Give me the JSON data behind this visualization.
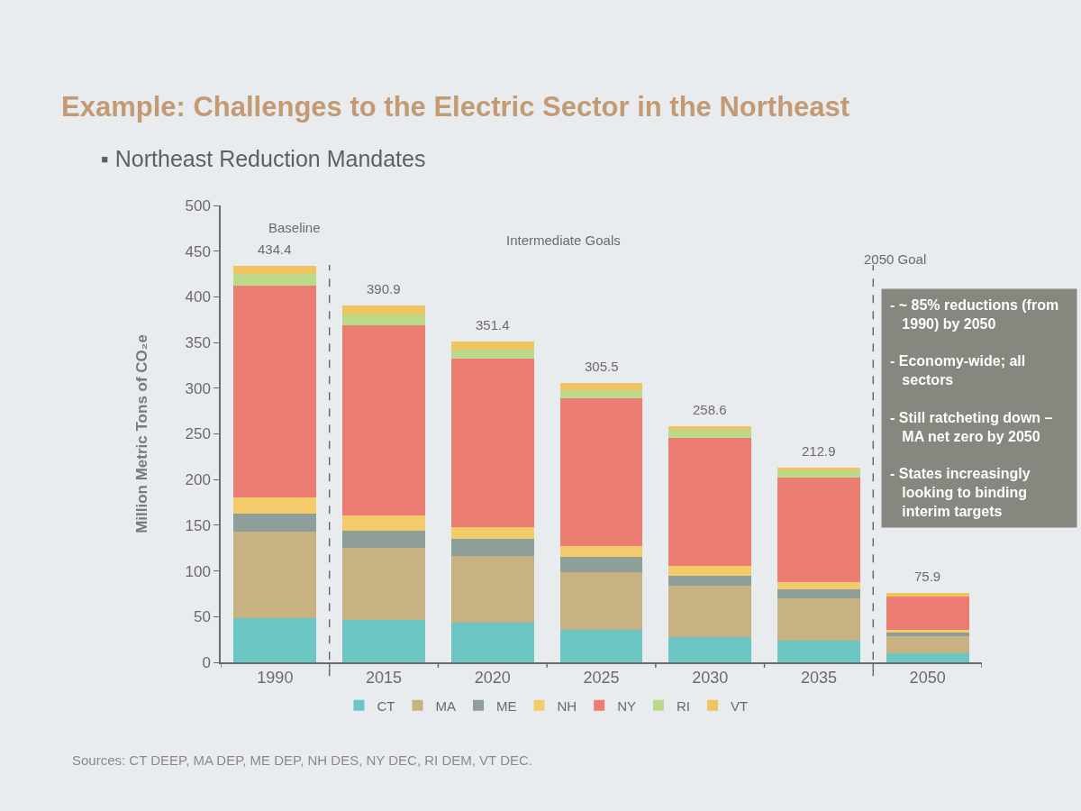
{
  "chart_data": {
    "type": "bar",
    "stacked": true,
    "title": "Example: Challenges to the Electric Sector in the Northeast",
    "subtitle": "▪ Northeast Reduction Mandates",
    "ylabel": "Million Metric Tons of CO₂e",
    "categories": [
      "1990",
      "2015",
      "2020",
      "2025",
      "2030",
      "2035",
      "2050"
    ],
    "series": [
      {
        "name": "CT",
        "color": "#6cc6c4",
        "values": [
          48,
          46,
          43,
          36,
          28,
          24,
          10
        ]
      },
      {
        "name": "MA",
        "color": "#c8b282",
        "values": [
          95,
          79,
          73,
          63,
          56,
          46,
          19
        ]
      },
      {
        "name": "ME",
        "color": "#8e9e99",
        "values": [
          20,
          19,
          19,
          16,
          11,
          10,
          4
        ]
      },
      {
        "name": "NH",
        "color": "#f3cb6a",
        "values": [
          17,
          17,
          13,
          12,
          11,
          8,
          3
        ]
      },
      {
        "name": "NY",
        "color": "#ec7d72",
        "values": [
          232.4,
          207.9,
          184.4,
          161.5,
          139.6,
          113.9,
          35.9
        ]
      },
      {
        "name": "RI",
        "color": "#bcd88a",
        "values": [
          13,
          12,
          10,
          9,
          9,
          8,
          null
        ]
      },
      {
        "name": "VT",
        "color": "#f0c45e",
        "values": [
          9,
          10,
          9,
          8,
          4,
          3,
          4
        ]
      }
    ],
    "totals": [
      "434.4",
      "390.9",
      "351.4",
      "305.5",
      "258.6",
      "212.9",
      "75.9"
    ],
    "ylim": [
      0,
      500
    ],
    "yticks": [
      0,
      50,
      100,
      150,
      200,
      250,
      300,
      350,
      400,
      450,
      500
    ],
    "grid": false,
    "legend": "bottom",
    "annotations": [
      "Baseline",
      "Intermediate Goals",
      "2050 Goal",
      "- ~ 85% reductions (from 1990) by 2050",
      "- Economy-wide; all sectors",
      "- Still ratcheting down – MA net zero by 2050",
      "- States increasingly looking to binding interim targets",
      "Sources: CT DEEP, MA DEP, ME DEP, NH DES, NY DEC, RI DEM, VT DEC."
    ]
  }
}
